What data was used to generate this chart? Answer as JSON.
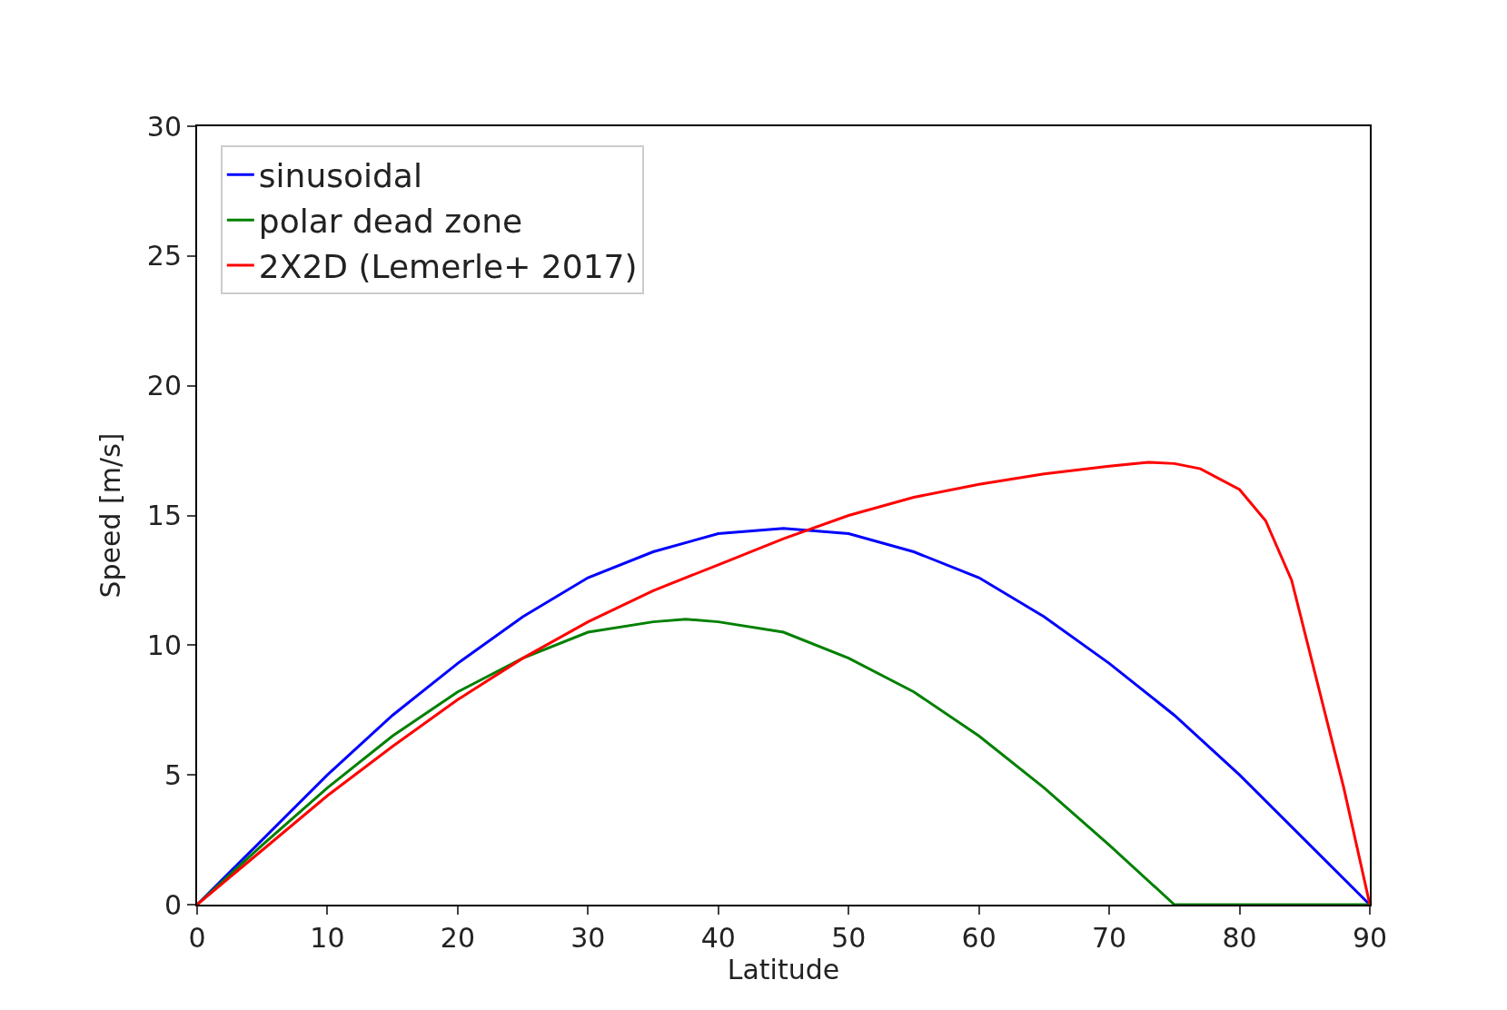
{
  "chart_data": {
    "type": "line",
    "xlabel": "Latitude",
    "ylabel": "Speed [m/s]",
    "xlim": [
      0,
      90
    ],
    "xticks": [
      0,
      10,
      20,
      30,
      40,
      50,
      60,
      70,
      80,
      90
    ],
    "ylim": [
      0,
      30
    ],
    "yticks": [
      0,
      5,
      10,
      15,
      20,
      25,
      30
    ],
    "grid": false,
    "legend": "top left",
    "marker": "none",
    "line_style": "solid",
    "series": [
      {
        "name": "sinusoidal",
        "color": "#0000ff",
        "x": [
          0,
          5,
          10,
          15,
          20,
          25,
          30,
          35,
          40,
          45,
          50,
          55,
          60,
          65,
          70,
          75,
          80,
          85,
          90
        ],
        "values": [
          0,
          2.5,
          5.0,
          7.3,
          9.3,
          11.1,
          12.6,
          13.6,
          14.3,
          14.5,
          14.3,
          13.6,
          12.6,
          11.1,
          9.3,
          7.3,
          5.0,
          2.5,
          0
        ]
      },
      {
        "name": "polar dead zone",
        "color": "#008000",
        "x": [
          0,
          5,
          10,
          15,
          20,
          25,
          30,
          35,
          37.5,
          40,
          45,
          50,
          55,
          60,
          65,
          70,
          75,
          80,
          85,
          90
        ],
        "values": [
          0,
          2.3,
          4.5,
          6.5,
          8.2,
          9.5,
          10.5,
          10.9,
          11.0,
          10.9,
          10.5,
          9.5,
          8.2,
          6.5,
          4.5,
          2.3,
          0,
          0,
          0,
          0
        ]
      },
      {
        "name": "2X2D (Lemerle+ 2017)",
        "color": "#ff0000",
        "x": [
          0,
          5,
          10,
          15,
          20,
          25,
          30,
          35,
          40,
          45,
          50,
          55,
          60,
          65,
          70,
          73,
          75,
          77,
          80,
          82,
          84,
          86,
          88,
          90
        ],
        "values": [
          0,
          2.1,
          4.2,
          6.1,
          7.9,
          9.5,
          10.9,
          12.1,
          13.1,
          14.1,
          15.0,
          15.7,
          16.2,
          16.6,
          16.9,
          17.05,
          17.0,
          16.8,
          16.0,
          14.8,
          12.5,
          8.5,
          4.5,
          0
        ]
      }
    ]
  }
}
